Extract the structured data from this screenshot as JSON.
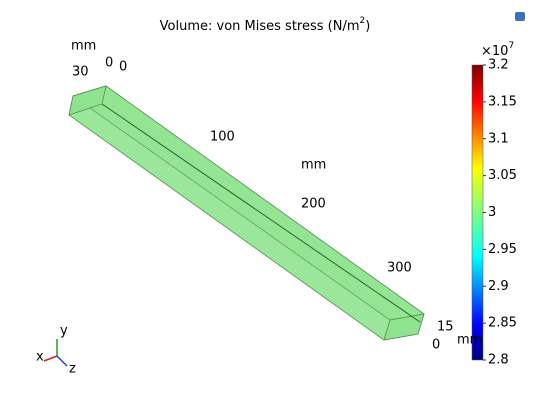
{
  "chart_data": {
    "type": "volume",
    "title": [
      "Volume: von Mises stress (N/m",
      "2",
      ")"
    ],
    "value": 2.98,
    "color": "#8fe38f",
    "axis_labels": [
      "mm",
      "30",
      "0",
      "0",
      "100",
      "mm",
      "200",
      "300",
      "15",
      "0",
      "mm"
    ],
    "triad": [
      "x",
      "y",
      "z"
    ],
    "colorbar": {
      "multiplier": [
        "×10",
        "7"
      ],
      "ylim": [
        2.8,
        3.2
      ],
      "yticks": [
        2.8,
        2.85,
        2.9,
        2.95,
        3,
        3.05,
        3.1,
        3.15,
        3.2
      ]
    }
  }
}
